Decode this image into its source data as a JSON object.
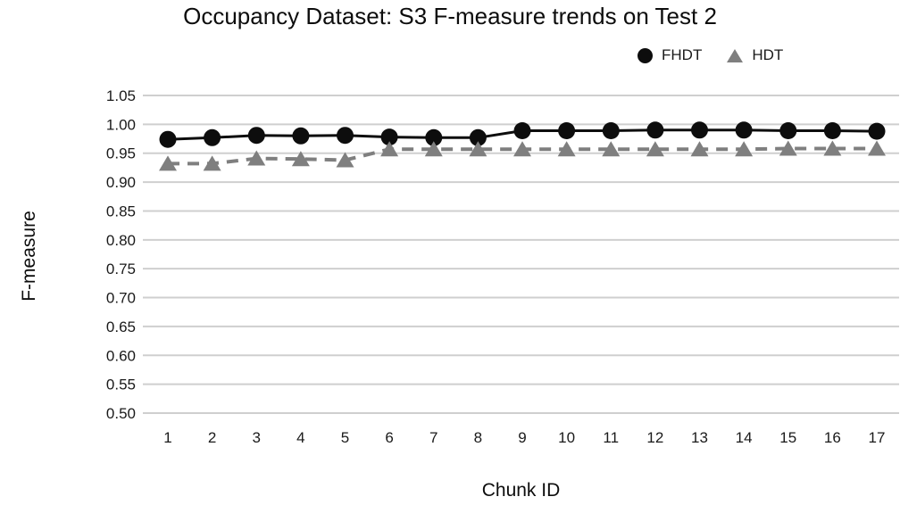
{
  "chart_data": {
    "type": "line",
    "title": "Occupancy Dataset: S3 F-measure trends on Test 2",
    "xlabel": "Chunk ID",
    "ylabel": "F-measure",
    "categories": [
      "1",
      "2",
      "3",
      "4",
      "5",
      "6",
      "7",
      "8",
      "9",
      "10",
      "11",
      "12",
      "13",
      "14",
      "15",
      "16",
      "17"
    ],
    "ylim": [
      0.5,
      1.05
    ],
    "ytick_labels": [
      "1.05",
      "1.00",
      "0.95",
      "0.90",
      "0.85",
      "0.80",
      "0.75",
      "0.70",
      "0.65",
      "0.60",
      "0.55",
      "0.50"
    ],
    "grid": "horizontal",
    "legend_position": "top-right",
    "series": [
      {
        "name": "FHDT",
        "color": "#0d0d0d",
        "marker": "circle",
        "line": "solid",
        "values": [
          0.974,
          0.977,
          0.981,
          0.98,
          0.981,
          0.978,
          0.977,
          0.977,
          0.989,
          0.989,
          0.989,
          0.99,
          0.99,
          0.99,
          0.989,
          0.989,
          0.988
        ]
      },
      {
        "name": "HDT",
        "color": "#7f7f7f",
        "marker": "triangle",
        "line": "dashed",
        "values": [
          0.932,
          0.932,
          0.941,
          0.94,
          0.938,
          0.957,
          0.957,
          0.957,
          0.957,
          0.957,
          0.957,
          0.957,
          0.957,
          0.957,
          0.958,
          0.958,
          0.958
        ]
      }
    ]
  }
}
